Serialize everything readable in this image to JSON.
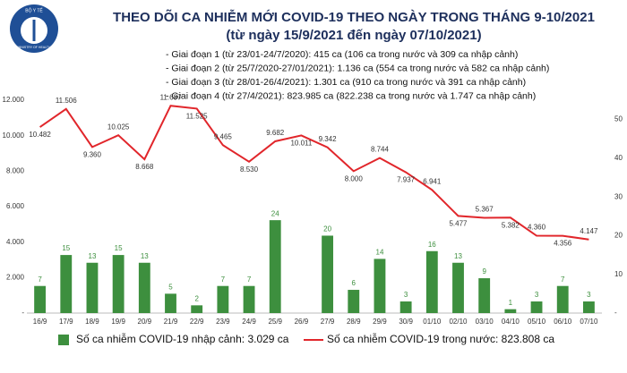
{
  "logo": {
    "top": "BỘ Y TẾ",
    "bottom": "MINISTRY OF HEALTH"
  },
  "chart_data": {
    "type": "combo",
    "title": "THEO DÕI CA NHIỄM MỚI COVID-19 THEO NGÀY TRONG THÁNG 9-10/2021",
    "subtitle": "(từ ngày 15/9/2021 đến ngày 07/10/2021)",
    "notes": [
      "- Giai đoạn 1 (từ 23/01-24/7/2020): 415 ca (106 ca trong nước và 309 ca nhập cảnh)",
      "- Giai đoạn 2 (từ 25/7/2020-27/01/2021): 1.136 ca (554 ca trong nước và 582 ca nhập cảnh)",
      "- Giai đoạn 3 (từ 28/01-26/4/2021): 1.301 ca (910 ca trong nước và 391 ca nhập cảnh)",
      "- Giai đoạn 4 (từ 27/4/2021): 823.985 ca (822.238 ca trong nước và 1.747 ca nhập cảnh)"
    ],
    "categories": [
      "16/9",
      "17/9",
      "18/9",
      "19/9",
      "20/9",
      "21/9",
      "22/9",
      "23/9",
      "24/9",
      "25/9",
      "26/9",
      "27/9",
      "28/9",
      "29/9",
      "30/9",
      "01/10",
      "02/10",
      "03/10",
      "04/10",
      "05/10",
      "06/10",
      "07/10"
    ],
    "series": [
      {
        "name": "Số ca nhiễm COVID-19 nhập cảnh: 3.029 ca",
        "type": "bar",
        "axis": "y2",
        "color": "#3d8f3e",
        "values": [
          7,
          15,
          13,
          15,
          13,
          5,
          2,
          7,
          7,
          24,
          null,
          20,
          6,
          14,
          3,
          16,
          13,
          9,
          1,
          3,
          7,
          3
        ]
      },
      {
        "name": "Số ca nhiễm COVID-19 trong nước: 823.808 ca",
        "type": "line",
        "color": "#e1262b",
        "values": [
          10482,
          11506,
          9360,
          10025,
          8668,
          11687,
          11525,
          9465,
          8530,
          9682,
          10011,
          9342,
          8000,
          8744,
          7937,
          6941,
          5477,
          5367,
          5382,
          4360,
          4356,
          4147
        ],
        "value_labels": [
          "10.482",
          "11.506",
          "9.360",
          "10.025",
          "8.668",
          "11.687",
          "11.525",
          "9.465",
          "8.530",
          "9.682",
          "10.011",
          "9.342",
          "8.000",
          "8.744",
          "7.937",
          "6.941",
          "5.477",
          "5.367",
          "5.382",
          "4.360",
          "4.356",
          "4.147"
        ]
      }
    ],
    "ylim": [
      0,
      12000
    ],
    "yticks": [
      {
        "value": 0,
        "label": "-"
      },
      {
        "value": 2000,
        "label": "2.000"
      },
      {
        "value": 4000,
        "label": "4.000"
      },
      {
        "value": 6000,
        "label": "6.000"
      },
      {
        "value": 8000,
        "label": "8.000"
      },
      {
        "value": 10000,
        "label": "10.000"
      },
      {
        "value": 12000,
        "label": "12.000"
      }
    ],
    "y2lim": [
      0,
      55
    ],
    "y2ticks": [
      {
        "value": 0,
        "label": "-"
      },
      10,
      20,
      30,
      40,
      50
    ]
  }
}
